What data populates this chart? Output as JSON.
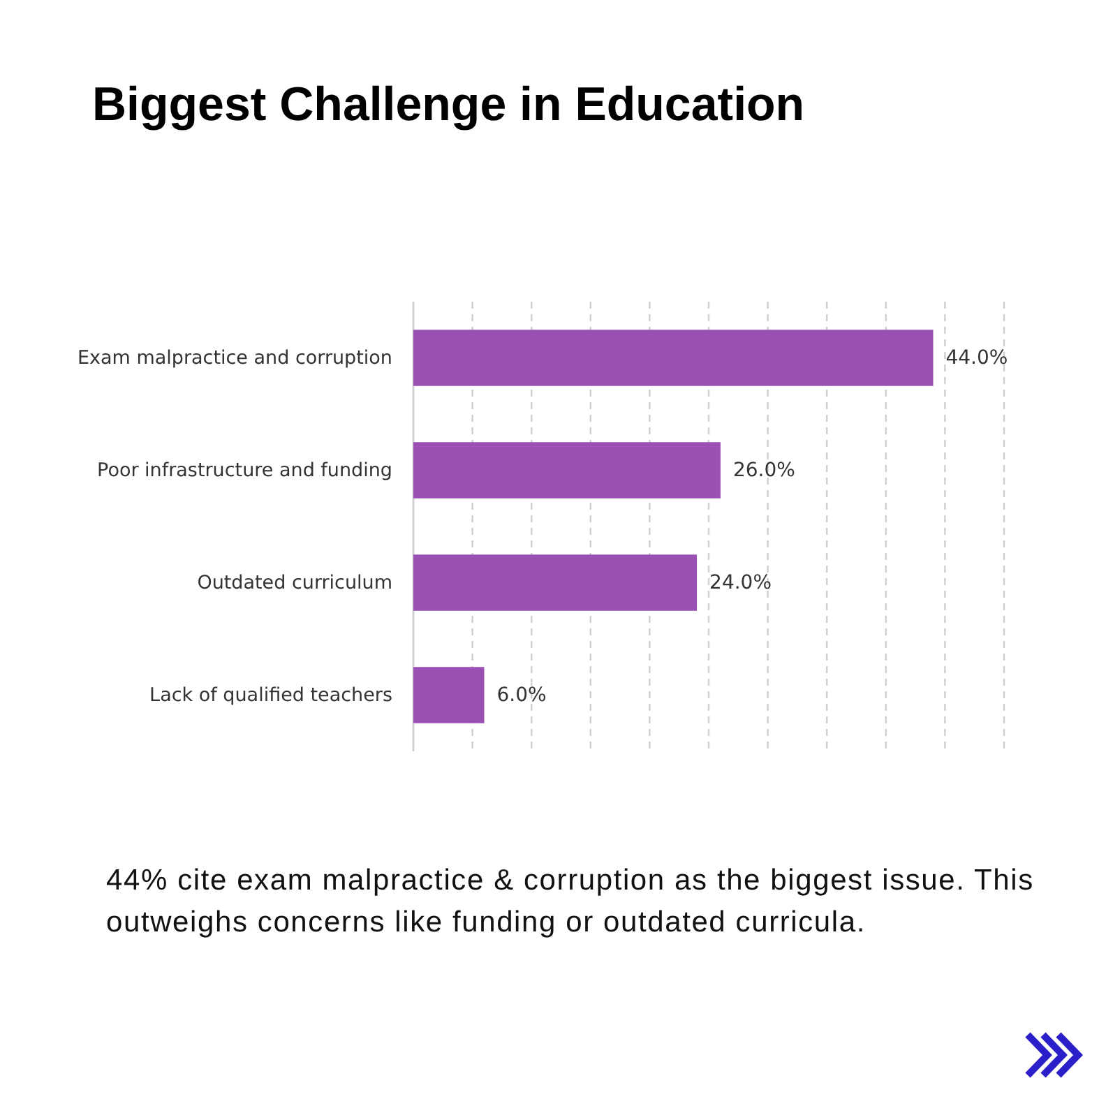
{
  "chart_data": {
    "type": "bar",
    "orientation": "horizontal",
    "title": "Biggest Challenge in Education",
    "categories": [
      "Exam malpractice and corruption",
      "Poor infrastructure and funding",
      "Outdated curriculum",
      "Lack of qualified teachers"
    ],
    "values": [
      44,
      26,
      24,
      6
    ],
    "color": "#9b51b4",
    "value_labels": [
      "44.0%",
      "26.0%",
      "24.0%",
      "6.0%"
    ],
    "xlim": [
      0,
      50
    ],
    "xticks": [
      {
        "value": 0,
        "label": null
      },
      {
        "value": 5,
        "label": null
      },
      {
        "value": 10,
        "label": null
      },
      {
        "value": 15,
        "label": null
      },
      {
        "value": 20,
        "label": null
      },
      {
        "value": 25,
        "label": null
      },
      {
        "value": 30,
        "label": null
      },
      {
        "value": 35,
        "label": null
      },
      {
        "value": 40,
        "label": null
      },
      {
        "value": 45,
        "label": null
      },
      {
        "value": 50,
        "label": null
      }
    ],
    "tick_labels": "y",
    "grid": "x",
    "annotations": [
      "44% cite exam malpractice & corruption as the biggest issue. This outweighs concerns like funding or outdated curricula."
    ]
  }
}
